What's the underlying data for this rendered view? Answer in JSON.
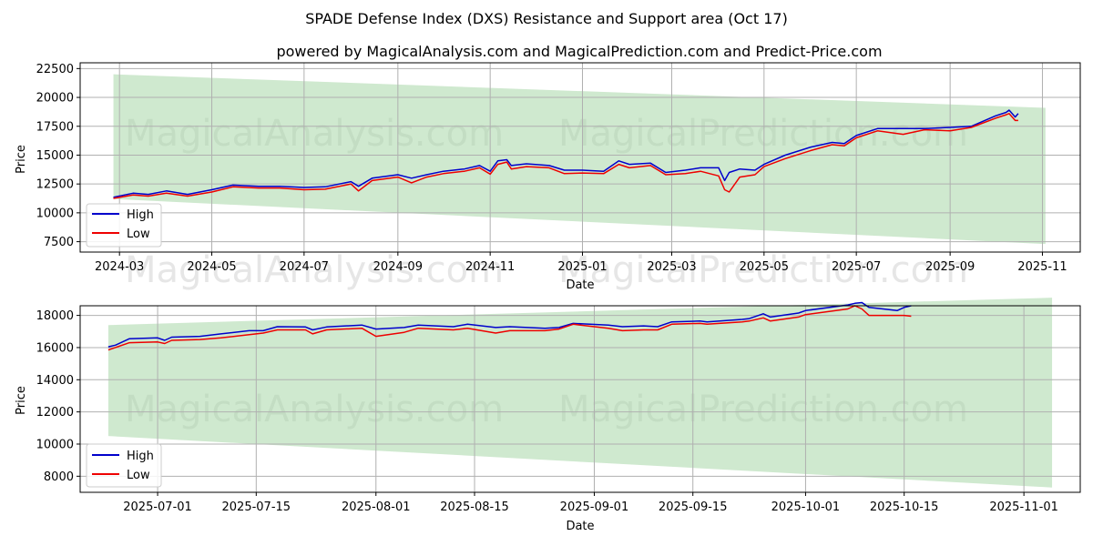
{
  "title": "SPADE Defense Index (DXS) Resistance and Support area (Oct 17)",
  "subtitle": "powered by MagicalAnalysis.com and MagicalPrediction.com and Predict-Price.com",
  "watermarks": [
    "MagicalAnalysis.com",
    "MagicalPrediction.com"
  ],
  "colors": {
    "high": "#0000cc",
    "low": "#ee0000",
    "band": "#9fd39f",
    "grid": "#b0b0b0"
  },
  "chart_data": [
    {
      "type": "line",
      "xlabel": "Date",
      "ylabel": "Price",
      "grid": true,
      "legend_position": "bottom-left",
      "x_range": [
        "2024-02-04",
        "2025-11-26"
      ],
      "ylim": [
        6600,
        23000
      ],
      "x_ticks": [
        "2024-03",
        "2024-05",
        "2024-07",
        "2024-09",
        "2024-11",
        "2025-01",
        "2025-03",
        "2025-05",
        "2025-07",
        "2025-09",
        "2025-11"
      ],
      "y_ticks": [
        7500,
        10000,
        12500,
        15000,
        17500,
        20000,
        22500
      ],
      "band": {
        "x": [
          "2024-02-26",
          "2025-11-03"
        ],
        "upper": [
          22000,
          19100
        ],
        "lower": [
          11200,
          7300
        ]
      },
      "series": [
        {
          "name": "High",
          "x": [
            "2024-02-26",
            "2024-03-10",
            "2024-03-20",
            "2024-04-01",
            "2024-04-15",
            "2024-05-01",
            "2024-05-15",
            "2024-06-01",
            "2024-06-15",
            "2024-07-01",
            "2024-07-15",
            "2024-08-01",
            "2024-08-06",
            "2024-08-15",
            "2024-09-01",
            "2024-09-10",
            "2024-09-20",
            "2024-10-01",
            "2024-10-15",
            "2024-10-25",
            "2024-11-01",
            "2024-11-06",
            "2024-11-12",
            "2024-11-15",
            "2024-11-25",
            "2024-12-10",
            "2024-12-20",
            "2025-01-01",
            "2025-01-15",
            "2025-01-25",
            "2025-02-01",
            "2025-02-15",
            "2025-02-25",
            "2025-03-10",
            "2025-03-20",
            "2025-04-01",
            "2025-04-05",
            "2025-04-08",
            "2025-04-15",
            "2025-04-25",
            "2025-05-01",
            "2025-05-15",
            "2025-06-01",
            "2025-06-15",
            "2025-06-23",
            "2025-07-01",
            "2025-07-15",
            "2025-08-01",
            "2025-08-15",
            "2025-09-01",
            "2025-09-15",
            "2025-10-01",
            "2025-10-08",
            "2025-10-10",
            "2025-10-14",
            "2025-10-16"
          ],
          "values": [
            11350,
            11700,
            11600,
            11900,
            11600,
            12000,
            12400,
            12300,
            12300,
            12200,
            12250,
            12700,
            12300,
            13000,
            13300,
            13000,
            13300,
            13600,
            13800,
            14100,
            13600,
            14500,
            14600,
            14100,
            14250,
            14100,
            13700,
            13700,
            13600,
            14500,
            14200,
            14300,
            13500,
            13700,
            13900,
            13900,
            12800,
            13500,
            13800,
            13700,
            14200,
            15000,
            15700,
            16100,
            16000,
            16700,
            17300,
            17300,
            17300,
            17400,
            17500,
            18400,
            18700,
            18900,
            18300,
            18600
          ]
        },
        {
          "name": "Low",
          "x": [
            "2024-02-26",
            "2024-03-10",
            "2024-03-20",
            "2024-04-01",
            "2024-04-15",
            "2024-05-01",
            "2024-05-15",
            "2024-06-01",
            "2024-06-15",
            "2024-07-01",
            "2024-07-15",
            "2024-08-01",
            "2024-08-06",
            "2024-08-15",
            "2024-09-01",
            "2024-09-10",
            "2024-09-20",
            "2024-10-01",
            "2024-10-15",
            "2024-10-25",
            "2024-11-01",
            "2024-11-06",
            "2024-11-12",
            "2024-11-15",
            "2024-11-25",
            "2024-12-10",
            "2024-12-20",
            "2025-01-01",
            "2025-01-15",
            "2025-01-25",
            "2025-02-01",
            "2025-02-15",
            "2025-02-25",
            "2025-03-10",
            "2025-03-20",
            "2025-04-01",
            "2025-04-05",
            "2025-04-08",
            "2025-04-15",
            "2025-04-25",
            "2025-05-01",
            "2025-05-15",
            "2025-06-01",
            "2025-06-15",
            "2025-06-23",
            "2025-07-01",
            "2025-07-15",
            "2025-08-01",
            "2025-08-15",
            "2025-09-01",
            "2025-09-15",
            "2025-10-01",
            "2025-10-08",
            "2025-10-10",
            "2025-10-14",
            "2025-10-16"
          ],
          "values": [
            11250,
            11550,
            11450,
            11700,
            11450,
            11800,
            12250,
            12150,
            12150,
            12000,
            12050,
            12500,
            11900,
            12800,
            13100,
            12600,
            13100,
            13400,
            13600,
            13900,
            13350,
            14200,
            14400,
            13800,
            14000,
            13900,
            13400,
            13450,
            13400,
            14200,
            13900,
            14100,
            13300,
            13400,
            13600,
            13200,
            12000,
            11800,
            13100,
            13300,
            14000,
            14700,
            15400,
            15900,
            15800,
            16500,
            17100,
            16800,
            17200,
            17100,
            17400,
            18200,
            18500,
            18600,
            18000,
            18000
          ]
        }
      ]
    },
    {
      "type": "line",
      "xlabel": "Date",
      "ylabel": "Price",
      "grid": true,
      "legend_position": "bottom-left",
      "x_range": [
        "2025-06-20",
        "2025-11-09"
      ],
      "ylim": [
        7000,
        18600
      ],
      "x_ticks": [
        "2025-07-01",
        "2025-07-15",
        "2025-08-01",
        "2025-08-15",
        "2025-09-01",
        "2025-09-15",
        "2025-10-01",
        "2025-10-15",
        "2025-11-01"
      ],
      "y_ticks": [
        8000,
        10000,
        12000,
        14000,
        16000,
        18000
      ],
      "band": {
        "x": [
          "2025-06-24",
          "2025-11-05"
        ],
        "upper": [
          17400,
          19100
        ],
        "lower": [
          10500,
          7300
        ]
      },
      "series": [
        {
          "name": "High",
          "x": [
            "2025-06-24",
            "2025-06-25",
            "2025-06-27",
            "2025-07-01",
            "2025-07-02",
            "2025-07-03",
            "2025-07-07",
            "2025-07-10",
            "2025-07-14",
            "2025-07-16",
            "2025-07-18",
            "2025-07-22",
            "2025-07-23",
            "2025-07-25",
            "2025-07-30",
            "2025-08-01",
            "2025-08-05",
            "2025-08-07",
            "2025-08-12",
            "2025-08-14",
            "2025-08-18",
            "2025-08-20",
            "2025-08-25",
            "2025-08-27",
            "2025-08-29",
            "2025-09-03",
            "2025-09-05",
            "2025-09-08",
            "2025-09-10",
            "2025-09-12",
            "2025-09-16",
            "2025-09-17",
            "2025-09-22",
            "2025-09-23",
            "2025-09-25",
            "2025-09-26",
            "2025-09-30",
            "2025-10-01",
            "2025-10-07",
            "2025-10-08",
            "2025-10-09",
            "2025-10-10",
            "2025-10-14",
            "2025-10-15",
            "2025-10-16"
          ],
          "values": [
            16050,
            16150,
            16550,
            16600,
            16450,
            16650,
            16700,
            16850,
            17050,
            17050,
            17300,
            17280,
            17100,
            17280,
            17400,
            17150,
            17250,
            17400,
            17300,
            17450,
            17250,
            17300,
            17200,
            17250,
            17500,
            17400,
            17300,
            17350,
            17300,
            17600,
            17650,
            17600,
            17750,
            17800,
            18100,
            17900,
            18150,
            18300,
            18650,
            18750,
            18800,
            18500,
            18300,
            18500,
            18600
          ]
        },
        {
          "name": "Low",
          "x": [
            "2025-06-24",
            "2025-06-25",
            "2025-06-27",
            "2025-07-01",
            "2025-07-02",
            "2025-07-03",
            "2025-07-07",
            "2025-07-10",
            "2025-07-14",
            "2025-07-16",
            "2025-07-18",
            "2025-07-22",
            "2025-07-23",
            "2025-07-25",
            "2025-07-30",
            "2025-08-01",
            "2025-08-05",
            "2025-08-07",
            "2025-08-12",
            "2025-08-14",
            "2025-08-18",
            "2025-08-20",
            "2025-08-25",
            "2025-08-27",
            "2025-08-29",
            "2025-09-03",
            "2025-09-05",
            "2025-09-08",
            "2025-09-10",
            "2025-09-12",
            "2025-09-16",
            "2025-09-17",
            "2025-09-22",
            "2025-09-23",
            "2025-09-25",
            "2025-09-26",
            "2025-09-30",
            "2025-10-01",
            "2025-10-07",
            "2025-10-08",
            "2025-10-09",
            "2025-10-10",
            "2025-10-14",
            "2025-10-15",
            "2025-10-16"
          ],
          "values": [
            15850,
            16000,
            16300,
            16350,
            16250,
            16450,
            16500,
            16600,
            16800,
            16900,
            17100,
            17100,
            16850,
            17100,
            17200,
            16700,
            16950,
            17200,
            17100,
            17200,
            16900,
            17050,
            17050,
            17150,
            17450,
            17200,
            17050,
            17100,
            17100,
            17450,
            17500,
            17450,
            17600,
            17650,
            17850,
            17650,
            17900,
            18050,
            18400,
            18600,
            18400,
            18000,
            18000,
            18000,
            17950
          ]
        }
      ]
    }
  ]
}
